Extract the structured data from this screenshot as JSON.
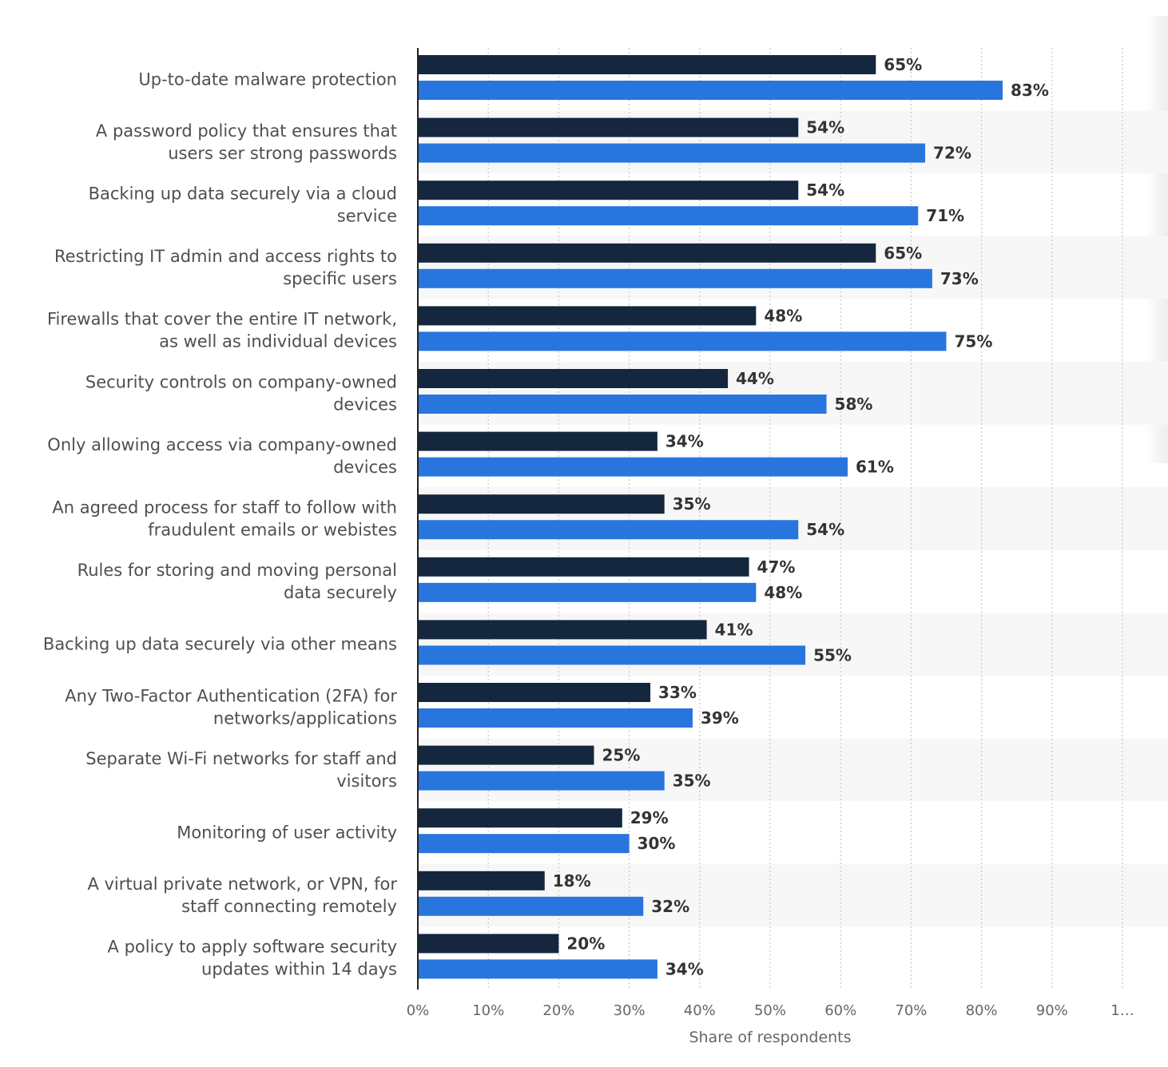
{
  "chart_data": {
    "type": "bar",
    "orientation": "horizontal",
    "categories": [
      "Up-to-date malware protection",
      "A password policy that ensures that users ser strong passwords",
      "Backing up data securely via a cloud service",
      "Restricting IT admin and access rights to specific users",
      "Firewalls that cover the entire IT network, as well as individual devices",
      "Security controls on company-owned devices",
      "Only allowing access via company-owned devices",
      "An agreed process for staff to follow with fraudulent emails or webistes",
      "Rules for storing and moving personal data securely",
      "Backing up data securely via other means",
      "Any Two-Factor Authentication (2FA) for networks/applications",
      "Separate Wi-Fi networks for staff and visitors",
      "Monitoring of user activity",
      "A virtual private network, or VPN, for staff connecting remotely",
      "A policy to apply software security updates within 14 days"
    ],
    "category_lines": [
      [
        "Up-to-date malware protection"
      ],
      [
        "A password policy that ensures that",
        "users ser strong passwords"
      ],
      [
        "Backing up data securely via a cloud",
        "service"
      ],
      [
        "Restricting IT admin and access rights to",
        "specific users"
      ],
      [
        "Firewalls that cover the entire IT network,",
        "as well as individual devices"
      ],
      [
        "Security controls on company-owned",
        "devices"
      ],
      [
        "Only allowing access via company-owned",
        "devices"
      ],
      [
        "An agreed process for staff to follow with",
        "fraudulent emails or webistes"
      ],
      [
        "Rules for storing and moving personal",
        "data securely"
      ],
      [
        "Backing up data securely via other means"
      ],
      [
        "Any Two-Factor Authentication (2FA) for",
        "networks/applications"
      ],
      [
        "Separate Wi-Fi networks for staff and",
        "visitors"
      ],
      [
        "Monitoring of user activity"
      ],
      [
        "A virtual private network, or VPN, for",
        "staff connecting remotely"
      ],
      [
        "A policy to apply software security",
        "updates within 14 days"
      ]
    ],
    "series": [
      {
        "color": "#14273e",
        "values": [
          65,
          54,
          54,
          65,
          48,
          44,
          34,
          35,
          47,
          41,
          33,
          25,
          29,
          18,
          20
        ]
      },
      {
        "color": "#2876dd",
        "values": [
          83,
          72,
          71,
          73,
          75,
          58,
          61,
          54,
          48,
          55,
          39,
          35,
          30,
          32,
          34
        ]
      }
    ],
    "value_suffix": "%",
    "xlim": [
      0,
      100
    ],
    "xticks": [
      "0%",
      "10%",
      "20%",
      "30%",
      "40%",
      "50%",
      "60%",
      "70%",
      "80%",
      "90%",
      "1…"
    ],
    "xlabel": "Share of respondents",
    "grid": true,
    "grid_style": "dotted",
    "alternating_row_shading": true
  }
}
